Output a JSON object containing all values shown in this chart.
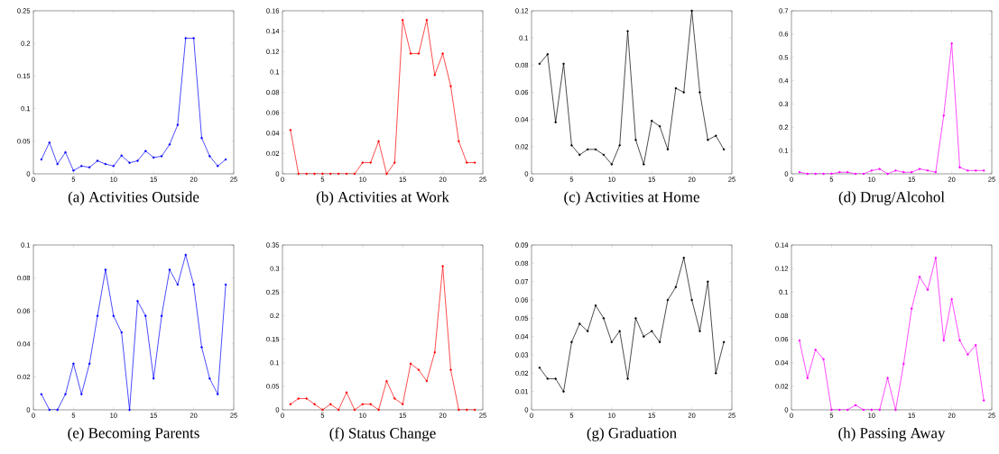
{
  "chart_data": [
    {
      "type": "line",
      "title": "(a) Activities Outside",
      "color": "#0000ff",
      "marker": "circle",
      "grid": false,
      "xlim": [
        0,
        25
      ],
      "ylim": [
        0,
        0.25
      ],
      "xticks": [
        0,
        5,
        10,
        15,
        20,
        25
      ],
      "yticks": [
        0,
        0.05,
        0.1,
        0.15,
        0.2,
        0.25
      ],
      "x": [
        1,
        2,
        3,
        4,
        5,
        6,
        7,
        8,
        9,
        10,
        11,
        12,
        13,
        14,
        15,
        16,
        17,
        18,
        19,
        20,
        21,
        22,
        23,
        24
      ],
      "values": [
        0.022,
        0.048,
        0.015,
        0.033,
        0.005,
        0.012,
        0.01,
        0.02,
        0.015,
        0.012,
        0.028,
        0.017,
        0.02,
        0.035,
        0.025,
        0.027,
        0.045,
        0.075,
        0.208,
        0.208,
        0.055,
        0.027,
        0.012,
        0.022
      ]
    },
    {
      "type": "line",
      "title": "(b) Activities at Work",
      "color": "#ff0000",
      "marker": "circle",
      "grid": false,
      "xlim": [
        0,
        25
      ],
      "ylim": [
        0,
        0.16
      ],
      "xticks": [
        0,
        5,
        10,
        15,
        20,
        25
      ],
      "yticks": [
        0,
        0.02,
        0.04,
        0.06,
        0.08,
        0.1,
        0.12,
        0.14,
        0.16
      ],
      "x": [
        1,
        2,
        3,
        4,
        5,
        6,
        7,
        8,
        9,
        10,
        11,
        12,
        13,
        14,
        15,
        16,
        17,
        18,
        19,
        20,
        21,
        22,
        23,
        24
      ],
      "values": [
        0.043,
        0,
        0,
        0,
        0,
        0,
        0,
        0,
        0,
        0.011,
        0.011,
        0.032,
        0,
        0.011,
        0.151,
        0.118,
        0.118,
        0.151,
        0.097,
        0.118,
        0.086,
        0.032,
        0.011,
        0.011
      ]
    },
    {
      "type": "line",
      "title": "(c) Activities at Home",
      "color": "#000000",
      "marker": "circle",
      "grid": false,
      "xlim": [
        0,
        25
      ],
      "ylim": [
        0,
        0.12
      ],
      "xticks": [
        0,
        5,
        10,
        15,
        20,
        25
      ],
      "yticks": [
        0,
        0.02,
        0.04,
        0.06,
        0.08,
        0.1,
        0.12
      ],
      "x": [
        1,
        2,
        3,
        4,
        5,
        6,
        7,
        8,
        9,
        10,
        11,
        12,
        13,
        14,
        15,
        16,
        17,
        18,
        19,
        20,
        21,
        22,
        23,
        24
      ],
      "values": [
        0.081,
        0.088,
        0.038,
        0.081,
        0.021,
        0.014,
        0.018,
        0.018,
        0.014,
        0.007,
        0.021,
        0.105,
        0.025,
        0.007,
        0.039,
        0.035,
        0.018,
        0.063,
        0.06,
        0.12,
        0.06,
        0.025,
        0.028,
        0.018
      ]
    },
    {
      "type": "line",
      "title": "(d) Drug/Alcohol",
      "color": "#ff00ff",
      "marker": "circle",
      "grid": false,
      "xlim": [
        0,
        25
      ],
      "ylim": [
        0,
        0.7
      ],
      "xticks": [
        0,
        5,
        10,
        15,
        20,
        25
      ],
      "yticks": [
        0,
        0.1,
        0.2,
        0.3,
        0.4,
        0.5,
        0.6,
        0.7
      ],
      "x": [
        1,
        2,
        3,
        4,
        5,
        6,
        7,
        8,
        9,
        10,
        11,
        12,
        13,
        14,
        15,
        16,
        17,
        18,
        19,
        20,
        21,
        22,
        23,
        24
      ],
      "values": [
        0.007,
        0,
        0,
        0,
        0,
        0.007,
        0.007,
        0,
        0,
        0.014,
        0.021,
        0,
        0.014,
        0.007,
        0.007,
        0.021,
        0.014,
        0.007,
        0.25,
        0.56,
        0.028,
        0.014,
        0.014,
        0.014
      ]
    },
    {
      "type": "line",
      "title": "(e) Becoming Parents",
      "color": "#0000ff",
      "marker": "circle",
      "grid": false,
      "xlim": [
        0,
        25
      ],
      "ylim": [
        0,
        0.1
      ],
      "xticks": [
        0,
        5,
        10,
        15,
        20,
        25
      ],
      "yticks": [
        0,
        0.02,
        0.04,
        0.06,
        0.08,
        0.1
      ],
      "x": [
        1,
        2,
        3,
        4,
        5,
        6,
        7,
        8,
        9,
        10,
        11,
        12,
        13,
        14,
        15,
        16,
        17,
        18,
        19,
        20,
        21,
        22,
        23,
        24
      ],
      "values": [
        0.0095,
        0,
        0,
        0.0095,
        0.028,
        0.0095,
        0.028,
        0.057,
        0.085,
        0.057,
        0.047,
        0,
        0.066,
        0.057,
        0.019,
        0.057,
        0.085,
        0.076,
        0.094,
        0.076,
        0.038,
        0.019,
        0.0095,
        0.076
      ]
    },
    {
      "type": "line",
      "title": "(f) Status Change",
      "color": "#ff0000",
      "marker": "circle",
      "grid": false,
      "xlim": [
        0,
        25
      ],
      "ylim": [
        0,
        0.35
      ],
      "xticks": [
        0,
        5,
        10,
        15,
        20,
        25
      ],
      "yticks": [
        0,
        0.05,
        0.1,
        0.15,
        0.2,
        0.25,
        0.3,
        0.35
      ],
      "x": [
        1,
        2,
        3,
        4,
        5,
        6,
        7,
        8,
        9,
        10,
        11,
        12,
        13,
        14,
        15,
        16,
        17,
        18,
        19,
        20,
        21,
        22,
        23,
        24
      ],
      "values": [
        0.012,
        0.024,
        0.024,
        0.012,
        0,
        0.012,
        0,
        0.037,
        0,
        0.012,
        0.012,
        0,
        0.061,
        0.024,
        0.012,
        0.098,
        0.085,
        0.061,
        0.122,
        0.305,
        0.085,
        0,
        0,
        0
      ]
    },
    {
      "type": "line",
      "title": "(g) Graduation",
      "color": "#000000",
      "marker": "circle",
      "grid": false,
      "xlim": [
        0,
        25
      ],
      "ylim": [
        0,
        0.09
      ],
      "xticks": [
        0,
        5,
        10,
        15,
        20,
        25
      ],
      "yticks": [
        0,
        0.01,
        0.02,
        0.03,
        0.04,
        0.05,
        0.06,
        0.07,
        0.08,
        0.09
      ],
      "x": [
        1,
        2,
        3,
        4,
        5,
        6,
        7,
        8,
        9,
        10,
        11,
        12,
        13,
        14,
        15,
        16,
        17,
        18,
        19,
        20,
        21,
        22,
        23,
        24
      ],
      "values": [
        0.023,
        0.017,
        0.017,
        0.01,
        0.037,
        0.047,
        0.043,
        0.057,
        0.05,
        0.037,
        0.043,
        0.017,
        0.05,
        0.04,
        0.043,
        0.037,
        0.06,
        0.067,
        0.083,
        0.06,
        0.043,
        0.07,
        0.02,
        0.037
      ]
    },
    {
      "type": "line",
      "title": "(h) Passing Away",
      "color": "#ff00ff",
      "marker": "circle",
      "grid": false,
      "xlim": [
        0,
        25
      ],
      "ylim": [
        0,
        0.14
      ],
      "xticks": [
        0,
        5,
        10,
        15,
        20,
        25
      ],
      "yticks": [
        0,
        0.02,
        0.04,
        0.06,
        0.08,
        0.1,
        0.12,
        0.14
      ],
      "x": [
        1,
        2,
        3,
        4,
        5,
        6,
        7,
        8,
        9,
        10,
        11,
        12,
        13,
        14,
        15,
        16,
        17,
        18,
        19,
        20,
        21,
        22,
        23,
        24
      ],
      "values": [
        0.059,
        0.027,
        0.051,
        0.043,
        0,
        0,
        0,
        0.004,
        0,
        0,
        0,
        0.027,
        0,
        0.039,
        0.086,
        0.113,
        0.102,
        0.129,
        0.059,
        0.094,
        0.059,
        0.047,
        0.055,
        0.008
      ]
    }
  ]
}
